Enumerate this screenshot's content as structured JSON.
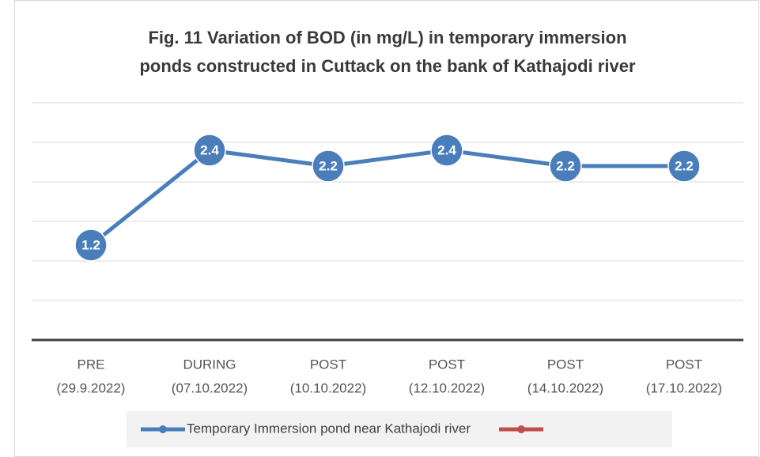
{
  "chart_data": {
    "type": "line",
    "title": [
      "Fig. 11   Variation of BOD (in mg/L) in temporary immersion",
      "ponds constructed in Cuttack on the bank of Kathajodi river"
    ],
    "categories": [
      [
        "PRE",
        "(29.9.2022)"
      ],
      [
        "DURING",
        "(07.10.2022)"
      ],
      [
        "POST",
        "(10.10.2022)"
      ],
      [
        "POST",
        "(12.10.2022)"
      ],
      [
        "POST",
        "(14.10.2022)"
      ],
      [
        "POST",
        "(17.10.2022)"
      ]
    ],
    "series": [
      {
        "name": "Temporary Immersion pond near Kathajodi river",
        "color": "#4a7ebb",
        "values": [
          1.2,
          2.4,
          2.2,
          2.4,
          2.2,
          2.2
        ]
      },
      {
        "color": "#c0504d",
        "values": [
          null,
          null,
          null,
          null,
          null,
          null
        ]
      }
    ],
    "ylim": [
      0,
      3
    ],
    "yticks": [
      0,
      0.5,
      1,
      1.5,
      2,
      2.5,
      3
    ],
    "grid": true,
    "data_labels": true,
    "legend": "bottom"
  }
}
